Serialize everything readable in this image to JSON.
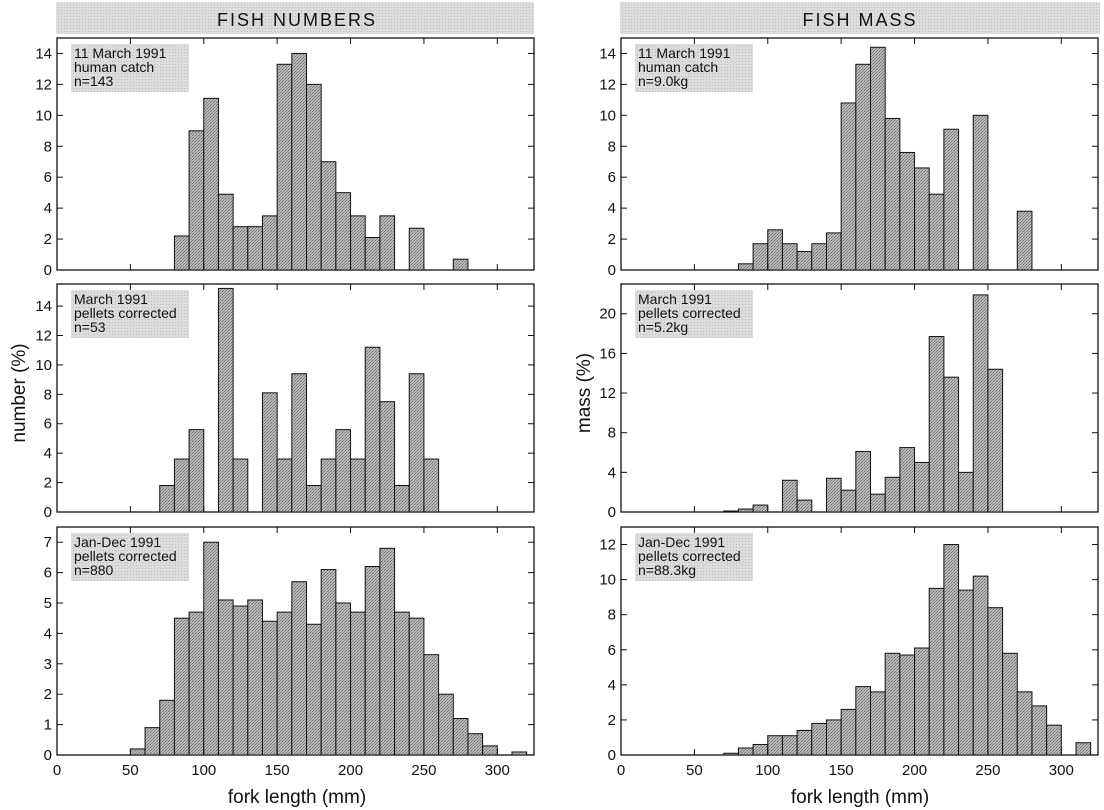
{
  "figure": {
    "left_title": "FISH NUMBERS",
    "right_title": "FISH MASS",
    "left_ylabel": "number (%)",
    "right_ylabel": "mass (%)",
    "xlabel": "fork length (mm)"
  },
  "chart_data": [
    {
      "type": "bar",
      "column": "left",
      "row": 0,
      "annotation": [
        "11 March 1991",
        "human catch",
        "n=143"
      ],
      "xlim": [
        0,
        325
      ],
      "ylim": [
        0,
        15
      ],
      "xticks": [
        0,
        50,
        100,
        150,
        200,
        250,
        300
      ],
      "yticks": [
        0,
        2,
        4,
        6,
        8,
        10,
        12,
        14
      ],
      "bin_width": 10,
      "x": [
        85,
        95,
        105,
        115,
        125,
        135,
        145,
        155,
        165,
        175,
        185,
        195,
        205,
        215,
        225,
        245,
        275
      ],
      "values": [
        2.2,
        9.0,
        11.1,
        4.9,
        2.8,
        2.8,
        3.5,
        13.3,
        14.0,
        12.0,
        7.0,
        5.0,
        3.5,
        2.1,
        3.5,
        2.7,
        0.7
      ]
    },
    {
      "type": "bar",
      "column": "left",
      "row": 1,
      "annotation": [
        "March 1991",
        "pellets corrected",
        "n=53"
      ],
      "xlim": [
        0,
        325
      ],
      "ylim": [
        0,
        15.5
      ],
      "xticks": [
        0,
        50,
        100,
        150,
        200,
        250,
        300
      ],
      "yticks": [
        0,
        2,
        4,
        6,
        8,
        10,
        12,
        14
      ],
      "bin_width": 10,
      "x": [
        75,
        85,
        95,
        115,
        125,
        145,
        155,
        165,
        175,
        185,
        195,
        205,
        215,
        225,
        235,
        245,
        255
      ],
      "values": [
        1.8,
        3.6,
        5.6,
        15.2,
        3.6,
        8.1,
        3.6,
        9.4,
        1.8,
        3.6,
        5.6,
        3.6,
        11.2,
        7.5,
        1.8,
        9.4,
        3.6
      ]
    },
    {
      "type": "bar",
      "column": "left",
      "row": 2,
      "annotation": [
        "Jan-Dec 1991",
        "pellets corrected",
        "n=880"
      ],
      "xlim": [
        0,
        325
      ],
      "ylim": [
        0,
        7.5
      ],
      "xticks": [
        0,
        50,
        100,
        150,
        200,
        250,
        300
      ],
      "yticks": [
        0,
        1,
        2,
        3,
        4,
        5,
        6,
        7
      ],
      "bin_width": 10,
      "x": [
        55,
        65,
        75,
        85,
        95,
        105,
        115,
        125,
        135,
        145,
        155,
        165,
        175,
        185,
        195,
        205,
        215,
        225,
        235,
        245,
        255,
        265,
        275,
        285,
        295,
        315
      ],
      "values": [
        0.2,
        0.9,
        1.8,
        4.5,
        4.7,
        7.0,
        5.1,
        4.9,
        5.1,
        4.4,
        4.7,
        5.7,
        4.3,
        6.1,
        5.0,
        4.7,
        6.2,
        6.8,
        4.7,
        4.5,
        3.3,
        2.0,
        1.2,
        0.7,
        0.3,
        0.1
      ]
    },
    {
      "type": "bar",
      "column": "right",
      "row": 0,
      "annotation": [
        "11 March 1991",
        "human catch",
        "n=9.0kg"
      ],
      "xlim": [
        0,
        325
      ],
      "ylim": [
        0,
        15
      ],
      "xticks": [
        0,
        50,
        100,
        150,
        200,
        250,
        300
      ],
      "yticks": [
        0,
        2,
        4,
        6,
        8,
        10,
        12,
        14
      ],
      "bin_width": 10,
      "x": [
        85,
        95,
        105,
        115,
        125,
        135,
        145,
        155,
        165,
        175,
        185,
        195,
        205,
        215,
        225,
        245,
        275
      ],
      "values": [
        0.4,
        1.7,
        2.6,
        1.7,
        1.2,
        1.7,
        2.4,
        10.8,
        13.3,
        14.4,
        9.8,
        7.6,
        6.6,
        4.9,
        9.1,
        10.0,
        3.8
      ]
    },
    {
      "type": "bar",
      "column": "right",
      "row": 1,
      "annotation": [
        "March 1991",
        "pellets corrected",
        "n=5.2kg"
      ],
      "xlim": [
        0,
        325
      ],
      "ylim": [
        0,
        23
      ],
      "xticks": [
        0,
        50,
        100,
        150,
        200,
        250,
        300
      ],
      "yticks": [
        0,
        4,
        8,
        12,
        16,
        20
      ],
      "bin_width": 10,
      "x": [
        75,
        85,
        95,
        115,
        125,
        145,
        155,
        165,
        175,
        185,
        195,
        205,
        215,
        225,
        235,
        245,
        255
      ],
      "values": [
        0.1,
        0.3,
        0.7,
        3.2,
        1.2,
        3.4,
        2.2,
        6.1,
        1.8,
        3.5,
        6.5,
        5.0,
        17.7,
        13.6,
        4.0,
        21.9,
        14.4
      ]
    },
    {
      "type": "bar",
      "column": "right",
      "row": 2,
      "annotation": [
        "Jan-Dec 1991",
        "pellets corrected",
        "n=88.3kg"
      ],
      "xlim": [
        0,
        325
      ],
      "ylim": [
        0,
        13
      ],
      "xticks": [
        0,
        50,
        100,
        150,
        200,
        250,
        300
      ],
      "yticks": [
        0,
        2,
        4,
        6,
        8,
        10,
        12
      ],
      "bin_width": 10,
      "x": [
        75,
        85,
        95,
        105,
        115,
        125,
        135,
        145,
        155,
        165,
        175,
        185,
        195,
        205,
        215,
        225,
        235,
        245,
        255,
        265,
        275,
        285,
        295,
        315
      ],
      "values": [
        0.1,
        0.4,
        0.6,
        1.1,
        1.1,
        1.4,
        1.8,
        2.0,
        2.6,
        3.9,
        3.6,
        5.8,
        5.7,
        6.1,
        9.5,
        12.0,
        9.4,
        10.2,
        8.4,
        5.8,
        3.6,
        2.8,
        1.7,
        0.7
      ]
    }
  ]
}
